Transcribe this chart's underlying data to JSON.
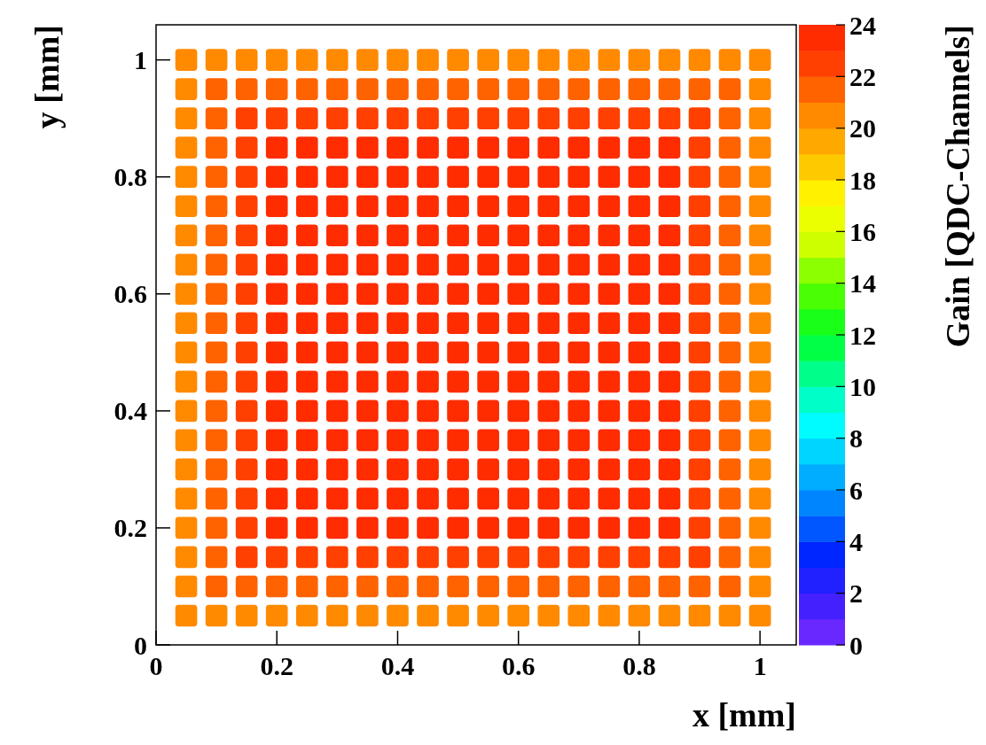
{
  "chart_data": {
    "type": "scatter",
    "marker": "square",
    "xlabel": "x [mm]",
    "ylabel": "y [mm]",
    "clabel": "Gain [QDC-Channels]",
    "xlim": [
      0,
      1.06
    ],
    "ylim": [
      0,
      1.06
    ],
    "xticks": [
      0,
      0.2,
      0.4,
      0.6,
      0.8,
      1
    ],
    "yticks": [
      0,
      0.2,
      0.4,
      0.6,
      0.8,
      1
    ],
    "clim": [
      0,
      24
    ],
    "cticks": [
      0,
      2,
      4,
      6,
      8,
      10,
      12,
      14,
      16,
      18,
      20,
      22,
      24
    ],
    "series": [
      {
        "color": "#ff8a00",
        "x": [
          0.05,
          0.1,
          0.15,
          0.2,
          0.25,
          0.3,
          0.35,
          0.4,
          0.45,
          0.5,
          0.55,
          0.6,
          0.65,
          0.7,
          0.75,
          0.8,
          0.85,
          0.9,
          0.95,
          1
        ],
        "values": [
          0.05,
          0.05,
          0.05,
          0.05,
          0.05,
          0.05,
          0.05,
          0.05,
          0.05,
          0.05,
          0.05,
          0.05,
          0.05,
          0.05,
          0.05,
          0.05,
          0.05,
          0.05,
          0.05,
          0.05
        ],
        "cvalues": [
          20.5,
          20.5,
          20.5,
          20.5,
          20.5,
          20.5,
          20.5,
          20.5,
          20.5,
          20.5,
          20.5,
          20.5,
          20.5,
          20.5,
          20.5,
          20.5,
          20.5,
          20.5,
          20.5,
          20.5
        ]
      },
      {
        "color": "#ff8a00",
        "x": [
          0.05,
          1
        ],
        "values": [
          0.1,
          0.1
        ],
        "cvalues": [
          20.5,
          20.5
        ]
      },
      {
        "color": "#ff6300",
        "x": [
          0.1,
          0.15,
          0.2,
          0.25,
          0.3,
          0.35,
          0.4,
          0.45,
          0.5,
          0.55,
          0.6,
          0.65,
          0.7,
          0.75,
          0.8,
          0.85,
          0.9,
          0.95
        ],
        "values": [
          0.1,
          0.1,
          0.1,
          0.1,
          0.1,
          0.1,
          0.1,
          0.1,
          0.1,
          0.1,
          0.1,
          0.1,
          0.1,
          0.1,
          0.1,
          0.1,
          0.1,
          0.1
        ],
        "cvalues": [
          21.5,
          21.5,
          21.5,
          21.5,
          21.5,
          21.5,
          21.5,
          21.5,
          21.5,
          21.5,
          21.5,
          21.5,
          21.5,
          21.5,
          21.5,
          21.5,
          21.5,
          21.5
        ]
      },
      {
        "color": "#ff8a00",
        "x": [
          0.05,
          1
        ],
        "values": [
          0.15,
          0.15
        ],
        "cvalues": [
          20.5,
          20.5
        ]
      },
      {
        "color": "#ff6300",
        "x": [
          0.1,
          0.95
        ],
        "values": [
          0.15,
          0.15
        ],
        "cvalues": [
          21.5,
          21.5
        ]
      },
      {
        "color": "#ff4000",
        "x": [
          0.15,
          0.2,
          0.25,
          0.3,
          0.35,
          0.4,
          0.45,
          0.5,
          0.55,
          0.6,
          0.65,
          0.7,
          0.75,
          0.8,
          0.85,
          0.9
        ],
        "values": [
          0.15,
          0.15,
          0.15,
          0.15,
          0.15,
          0.15,
          0.15,
          0.15,
          0.15,
          0.15,
          0.15,
          0.15,
          0.15,
          0.15,
          0.15,
          0.15
        ],
        "cvalues": [
          22.5,
          22.5,
          22.5,
          22.5,
          22.5,
          22.5,
          22.5,
          22.5,
          22.5,
          22.5,
          22.5,
          22.5,
          22.5,
          22.5,
          22.5,
          22.5
        ]
      },
      {
        "color": "#ff8a00",
        "x": [
          0.05,
          1
        ],
        "values": [
          0.2,
          0.2
        ],
        "cvalues": [
          20.5,
          20.5
        ]
      },
      {
        "color": "#ff6300",
        "x": [
          0.1,
          0.95
        ],
        "values": [
          0.2,
          0.2
        ],
        "cvalues": [
          21.5,
          21.5
        ]
      },
      {
        "color": "#ff4000",
        "x": [
          0.15,
          0.9
        ],
        "values": [
          0.2,
          0.2
        ],
        "cvalues": [
          22.5,
          22.5
        ]
      },
      {
        "color": "#ff2c00",
        "x": [
          0.2,
          0.25,
          0.3,
          0.35,
          0.4,
          0.45,
          0.5,
          0.55,
          0.6,
          0.65,
          0.7,
          0.75,
          0.8,
          0.85
        ],
        "values": [
          0.2,
          0.2,
          0.2,
          0.2,
          0.2,
          0.2,
          0.2,
          0.2,
          0.2,
          0.2,
          0.2,
          0.2,
          0.2,
          0.2
        ],
        "cvalues": [
          23.5,
          23.5,
          23.5,
          23.5,
          23.5,
          23.5,
          23.5,
          23.5,
          23.5,
          23.5,
          23.5,
          23.5,
          23.5,
          23.5
        ]
      },
      {
        "color": "#ff8a00",
        "x": [
          0.05,
          1
        ],
        "values": [
          0.25,
          0.25
        ],
        "cvalues": [
          20.5,
          20.5
        ]
      },
      {
        "color": "#ff6300",
        "x": [
          0.1,
          0.95
        ],
        "values": [
          0.25,
          0.25
        ],
        "cvalues": [
          21.5,
          21.5
        ]
      },
      {
        "color": "#ff4000",
        "x": [
          0.15,
          0.9
        ],
        "values": [
          0.25,
          0.25
        ],
        "cvalues": [
          22.5,
          22.5
        ]
      },
      {
        "color": "#ff2c00",
        "x": [
          0.2,
          0.25,
          0.3,
          0.35,
          0.4,
          0.45,
          0.5,
          0.55,
          0.6,
          0.65,
          0.7,
          0.75,
          0.8,
          0.85
        ],
        "values": [
          0.25,
          0.25,
          0.25,
          0.25,
          0.25,
          0.25,
          0.25,
          0.25,
          0.25,
          0.25,
          0.25,
          0.25,
          0.25,
          0.25
        ],
        "cvalues": [
          23.5,
          23.5,
          23.5,
          23.5,
          23.5,
          23.5,
          23.5,
          23.5,
          23.5,
          23.5,
          23.5,
          23.5,
          23.5,
          23.5
        ]
      },
      {
        "color": "#ff8a00",
        "x": [
          0.05,
          1
        ],
        "values": [
          0.3,
          0.3
        ],
        "cvalues": [
          20.5,
          20.5
        ]
      },
      {
        "color": "#ff6300",
        "x": [
          0.1,
          0.95
        ],
        "values": [
          0.3,
          0.3
        ],
        "cvalues": [
          21.5,
          21.5
        ]
      },
      {
        "color": "#ff4000",
        "x": [
          0.15,
          0.9
        ],
        "values": [
          0.3,
          0.3
        ],
        "cvalues": [
          22.5,
          22.5
        ]
      },
      {
        "color": "#ff2c00",
        "x": [
          0.2,
          0.25,
          0.3,
          0.35,
          0.4,
          0.45,
          0.5,
          0.55,
          0.6,
          0.65,
          0.7,
          0.75,
          0.8,
          0.85
        ],
        "values": [
          0.3,
          0.3,
          0.3,
          0.3,
          0.3,
          0.3,
          0.3,
          0.3,
          0.3,
          0.3,
          0.3,
          0.3,
          0.3,
          0.3
        ],
        "cvalues": [
          23.5,
          23.5,
          23.5,
          23.5,
          23.5,
          23.5,
          23.5,
          23.5,
          23.5,
          23.5,
          23.5,
          23.5,
          23.5,
          23.5
        ]
      },
      {
        "color": "#ff8a00",
        "x": [
          0.05,
          1
        ],
        "values": [
          0.35,
          0.35
        ],
        "cvalues": [
          20.5,
          20.5
        ]
      },
      {
        "color": "#ff6300",
        "x": [
          0.1,
          0.95
        ],
        "values": [
          0.35,
          0.35
        ],
        "cvalues": [
          21.5,
          21.5
        ]
      },
      {
        "color": "#ff4000",
        "x": [
          0.15,
          0.9
        ],
        "values": [
          0.35,
          0.35
        ],
        "cvalues": [
          22.5,
          22.5
        ]
      },
      {
        "color": "#ff2c00",
        "x": [
          0.2,
          0.25,
          0.3,
          0.35,
          0.4,
          0.45,
          0.5,
          0.55,
          0.6,
          0.65,
          0.7,
          0.75,
          0.8,
          0.85
        ],
        "values": [
          0.35,
          0.35,
          0.35,
          0.35,
          0.35,
          0.35,
          0.35,
          0.35,
          0.35,
          0.35,
          0.35,
          0.35,
          0.35,
          0.35
        ],
        "cvalues": [
          23.5,
          23.5,
          23.5,
          23.5,
          23.5,
          23.5,
          23.5,
          23.5,
          23.5,
          23.5,
          23.5,
          23.5,
          23.5,
          23.5
        ]
      },
      {
        "color": "#ff8a00",
        "x": [
          0.05,
          1
        ],
        "values": [
          0.4,
          0.4
        ],
        "cvalues": [
          20.5,
          20.5
        ]
      },
      {
        "color": "#ff6300",
        "x": [
          0.1,
          0.95
        ],
        "values": [
          0.4,
          0.4
        ],
        "cvalues": [
          21.5,
          21.5
        ]
      },
      {
        "color": "#ff4000",
        "x": [
          0.15,
          0.9
        ],
        "values": [
          0.4,
          0.4
        ],
        "cvalues": [
          22.5,
          22.5
        ]
      },
      {
        "color": "#ff2c00",
        "x": [
          0.2,
          0.25,
          0.3,
          0.35,
          0.4,
          0.45,
          0.5,
          0.55,
          0.6,
          0.65,
          0.7,
          0.75,
          0.8,
          0.85
        ],
        "values": [
          0.4,
          0.4,
          0.4,
          0.4,
          0.4,
          0.4,
          0.4,
          0.4,
          0.4,
          0.4,
          0.4,
          0.4,
          0.4,
          0.4
        ],
        "cvalues": [
          23.5,
          23.5,
          23.5,
          23.5,
          23.5,
          23.5,
          23.5,
          23.5,
          23.5,
          23.5,
          23.5,
          23.5,
          23.5,
          23.5
        ]
      },
      {
        "color": "#ff8a00",
        "x": [
          0.05,
          1
        ],
        "values": [
          0.45,
          0.45
        ],
        "cvalues": [
          20.5,
          20.5
        ]
      },
      {
        "color": "#ff6300",
        "x": [
          0.1,
          0.95
        ],
        "values": [
          0.45,
          0.45
        ],
        "cvalues": [
          21.5,
          21.5
        ]
      },
      {
        "color": "#ff4000",
        "x": [
          0.15,
          0.9
        ],
        "values": [
          0.45,
          0.45
        ],
        "cvalues": [
          22.5,
          22.5
        ]
      },
      {
        "color": "#ff2c00",
        "x": [
          0.2,
          0.25,
          0.3,
          0.35,
          0.4,
          0.45,
          0.5,
          0.55,
          0.6,
          0.65,
          0.7,
          0.75,
          0.8,
          0.85
        ],
        "values": [
          0.45,
          0.45,
          0.45,
          0.45,
          0.45,
          0.45,
          0.45,
          0.45,
          0.45,
          0.45,
          0.45,
          0.45,
          0.45,
          0.45
        ],
        "cvalues": [
          23.5,
          23.5,
          23.5,
          23.5,
          23.5,
          23.5,
          23.5,
          23.5,
          23.5,
          23.5,
          23.5,
          23.5,
          23.5,
          23.5
        ]
      },
      {
        "color": "#ff8a00",
        "x": [
          0.05,
          1
        ],
        "values": [
          0.5,
          0.5
        ],
        "cvalues": [
          20.5,
          20.5
        ]
      },
      {
        "color": "#ff6300",
        "x": [
          0.1,
          0.95
        ],
        "values": [
          0.5,
          0.5
        ],
        "cvalues": [
          21.5,
          21.5
        ]
      },
      {
        "color": "#ff4000",
        "x": [
          0.15,
          0.9
        ],
        "values": [
          0.5,
          0.5
        ],
        "cvalues": [
          22.5,
          22.5
        ]
      },
      {
        "color": "#ff2c00",
        "x": [
          0.2,
          0.25,
          0.3,
          0.35,
          0.4,
          0.45,
          0.5,
          0.55,
          0.6,
          0.65,
          0.7,
          0.75,
          0.8,
          0.85
        ],
        "values": [
          0.5,
          0.5,
          0.5,
          0.5,
          0.5,
          0.5,
          0.5,
          0.5,
          0.5,
          0.5,
          0.5,
          0.5,
          0.5,
          0.5
        ],
        "cvalues": [
          23.5,
          23.5,
          23.5,
          23.5,
          23.5,
          23.5,
          23.5,
          23.5,
          23.5,
          23.5,
          23.5,
          23.5,
          23.5,
          23.5
        ]
      },
      {
        "color": "#ff8a00",
        "x": [
          0.05,
          1
        ],
        "values": [
          0.55,
          0.55
        ],
        "cvalues": [
          20.5,
          20.5
        ]
      },
      {
        "color": "#ff6300",
        "x": [
          0.1,
          0.95
        ],
        "values": [
          0.55,
          0.55
        ],
        "cvalues": [
          21.5,
          21.5
        ]
      },
      {
        "color": "#ff4000",
        "x": [
          0.15,
          0.9
        ],
        "values": [
          0.55,
          0.55
        ],
        "cvalues": [
          22.5,
          22.5
        ]
      },
      {
        "color": "#ff2c00",
        "x": [
          0.2,
          0.25,
          0.3,
          0.35,
          0.4,
          0.45,
          0.5,
          0.55,
          0.6,
          0.65,
          0.7,
          0.75,
          0.8,
          0.85
        ],
        "values": [
          0.55,
          0.55,
          0.55,
          0.55,
          0.55,
          0.55,
          0.55,
          0.55,
          0.55,
          0.55,
          0.55,
          0.55,
          0.55,
          0.55
        ],
        "cvalues": [
          23.5,
          23.5,
          23.5,
          23.5,
          23.5,
          23.5,
          23.5,
          23.5,
          23.5,
          23.5,
          23.5,
          23.5,
          23.5,
          23.5
        ]
      },
      {
        "color": "#ff8a00",
        "x": [
          0.05,
          1
        ],
        "values": [
          0.6,
          0.6
        ],
        "cvalues": [
          20.5,
          20.5
        ]
      },
      {
        "color": "#ff6300",
        "x": [
          0.1,
          0.95
        ],
        "values": [
          0.6,
          0.6
        ],
        "cvalues": [
          21.5,
          21.5
        ]
      },
      {
        "color": "#ff4000",
        "x": [
          0.15,
          0.9
        ],
        "values": [
          0.6,
          0.6
        ],
        "cvalues": [
          22.5,
          22.5
        ]
      },
      {
        "color": "#ff2c00",
        "x": [
          0.2,
          0.25,
          0.3,
          0.35,
          0.4,
          0.45,
          0.5,
          0.55,
          0.6,
          0.65,
          0.7,
          0.75,
          0.8,
          0.85
        ],
        "values": [
          0.6,
          0.6,
          0.6,
          0.6,
          0.6,
          0.6,
          0.6,
          0.6,
          0.6,
          0.6,
          0.6,
          0.6,
          0.6,
          0.6
        ],
        "cvalues": [
          23.5,
          23.5,
          23.5,
          23.5,
          23.5,
          23.5,
          23.5,
          23.5,
          23.5,
          23.5,
          23.5,
          23.5,
          23.5,
          23.5
        ]
      },
      {
        "color": "#ff8a00",
        "x": [
          0.05,
          1
        ],
        "values": [
          0.65,
          0.65
        ],
        "cvalues": [
          20.5,
          20.5
        ]
      },
      {
        "color": "#ff6300",
        "x": [
          0.1,
          0.95
        ],
        "values": [
          0.65,
          0.65
        ],
        "cvalues": [
          21.5,
          21.5
        ]
      },
      {
        "color": "#ff4000",
        "x": [
          0.15,
          0.9
        ],
        "values": [
          0.65,
          0.65
        ],
        "cvalues": [
          22.5,
          22.5
        ]
      },
      {
        "color": "#ff2c00",
        "x": [
          0.2,
          0.25,
          0.3,
          0.35,
          0.4,
          0.45,
          0.5,
          0.55,
          0.6,
          0.65,
          0.7,
          0.75,
          0.8,
          0.85
        ],
        "values": [
          0.65,
          0.65,
          0.65,
          0.65,
          0.65,
          0.65,
          0.65,
          0.65,
          0.65,
          0.65,
          0.65,
          0.65,
          0.65,
          0.65
        ],
        "cvalues": [
          23.5,
          23.5,
          23.5,
          23.5,
          23.5,
          23.5,
          23.5,
          23.5,
          23.5,
          23.5,
          23.5,
          23.5,
          23.5,
          23.5
        ]
      },
      {
        "color": "#ff8a00",
        "x": [
          0.05,
          1
        ],
        "values": [
          0.7,
          0.7
        ],
        "cvalues": [
          20.5,
          20.5
        ]
      },
      {
        "color": "#ff6300",
        "x": [
          0.1,
          0.95
        ],
        "values": [
          0.7,
          0.7
        ],
        "cvalues": [
          21.5,
          21.5
        ]
      },
      {
        "color": "#ff4000",
        "x": [
          0.15,
          0.9
        ],
        "values": [
          0.7,
          0.7
        ],
        "cvalues": [
          22.5,
          22.5
        ]
      },
      {
        "color": "#ff2c00",
        "x": [
          0.2,
          0.25,
          0.3,
          0.35,
          0.4,
          0.45,
          0.5,
          0.55,
          0.6,
          0.65,
          0.7,
          0.75,
          0.8,
          0.85
        ],
        "values": [
          0.7,
          0.7,
          0.7,
          0.7,
          0.7,
          0.7,
          0.7,
          0.7,
          0.7,
          0.7,
          0.7,
          0.7,
          0.7,
          0.7
        ],
        "cvalues": [
          23.5,
          23.5,
          23.5,
          23.5,
          23.5,
          23.5,
          23.5,
          23.5,
          23.5,
          23.5,
          23.5,
          23.5,
          23.5,
          23.5
        ]
      },
      {
        "color": "#ff8a00",
        "x": [
          0.05,
          1
        ],
        "values": [
          0.75,
          0.75
        ],
        "cvalues": [
          20.5,
          20.5
        ]
      },
      {
        "color": "#ff6300",
        "x": [
          0.1,
          0.95
        ],
        "values": [
          0.75,
          0.75
        ],
        "cvalues": [
          21.5,
          21.5
        ]
      },
      {
        "color": "#ff4000",
        "x": [
          0.15,
          0.9
        ],
        "values": [
          0.75,
          0.75
        ],
        "cvalues": [
          22.5,
          22.5
        ]
      },
      {
        "color": "#ff2c00",
        "x": [
          0.2,
          0.25,
          0.3,
          0.35,
          0.4,
          0.45,
          0.5,
          0.55,
          0.6,
          0.65,
          0.7,
          0.75,
          0.8,
          0.85
        ],
        "values": [
          0.75,
          0.75,
          0.75,
          0.75,
          0.75,
          0.75,
          0.75,
          0.75,
          0.75,
          0.75,
          0.75,
          0.75,
          0.75,
          0.75
        ],
        "cvalues": [
          23.5,
          23.5,
          23.5,
          23.5,
          23.5,
          23.5,
          23.5,
          23.5,
          23.5,
          23.5,
          23.5,
          23.5,
          23.5,
          23.5
        ]
      },
      {
        "color": "#ff8a00",
        "x": [
          0.05,
          1
        ],
        "values": [
          0.8,
          0.8
        ],
        "cvalues": [
          20.5,
          20.5
        ]
      },
      {
        "color": "#ff6300",
        "x": [
          0.1,
          0.95
        ],
        "values": [
          0.8,
          0.8
        ],
        "cvalues": [
          21.5,
          21.5
        ]
      },
      {
        "color": "#ff4000",
        "x": [
          0.15,
          0.9
        ],
        "values": [
          0.8,
          0.8
        ],
        "cvalues": [
          22.5,
          22.5
        ]
      },
      {
        "color": "#ff2c00",
        "x": [
          0.2,
          0.25,
          0.3,
          0.35,
          0.4,
          0.45,
          0.5,
          0.55,
          0.6,
          0.65,
          0.7,
          0.75,
          0.8,
          0.85
        ],
        "values": [
          0.8,
          0.8,
          0.8,
          0.8,
          0.8,
          0.8,
          0.8,
          0.8,
          0.8,
          0.8,
          0.8,
          0.8,
          0.8,
          0.8
        ],
        "cvalues": [
          23.5,
          23.5,
          23.5,
          23.5,
          23.5,
          23.5,
          23.5,
          23.5,
          23.5,
          23.5,
          23.5,
          23.5,
          23.5,
          23.5
        ]
      },
      {
        "color": "#ff8a00",
        "x": [
          0.05,
          1
        ],
        "values": [
          0.85,
          0.85
        ],
        "cvalues": [
          20.5,
          20.5
        ]
      },
      {
        "color": "#ff6300",
        "x": [
          0.1,
          0.95
        ],
        "values": [
          0.85,
          0.85
        ],
        "cvalues": [
          21.5,
          21.5
        ]
      },
      {
        "color": "#ff4000",
        "x": [
          0.15,
          0.9
        ],
        "values": [
          0.85,
          0.85
        ],
        "cvalues": [
          22.5,
          22.5
        ]
      },
      {
        "color": "#ff2c00",
        "x": [
          0.2,
          0.25,
          0.3,
          0.35,
          0.4,
          0.45,
          0.5,
          0.55,
          0.6,
          0.65,
          0.7,
          0.75,
          0.8,
          0.85
        ],
        "values": [
          0.85,
          0.85,
          0.85,
          0.85,
          0.85,
          0.85,
          0.85,
          0.85,
          0.85,
          0.85,
          0.85,
          0.85,
          0.85,
          0.85
        ],
        "cvalues": [
          23.5,
          23.5,
          23.5,
          23.5,
          23.5,
          23.5,
          23.5,
          23.5,
          23.5,
          23.5,
          23.5,
          23.5,
          23.5,
          23.5
        ]
      },
      {
        "color": "#ff8a00",
        "x": [
          0.05,
          1
        ],
        "values": [
          0.9,
          0.9
        ],
        "cvalues": [
          20.5,
          20.5
        ]
      },
      {
        "color": "#ff6300",
        "x": [
          0.1,
          0.95
        ],
        "values": [
          0.9,
          0.9
        ],
        "cvalues": [
          21.5,
          21.5
        ]
      },
      {
        "color": "#ff4000",
        "x": [
          0.15,
          0.2,
          0.25,
          0.3,
          0.35,
          0.4,
          0.45,
          0.5,
          0.55,
          0.6,
          0.65,
          0.7,
          0.75,
          0.8,
          0.85,
          0.9
        ],
        "values": [
          0.9,
          0.9,
          0.9,
          0.9,
          0.9,
          0.9,
          0.9,
          0.9,
          0.9,
          0.9,
          0.9,
          0.9,
          0.9,
          0.9,
          0.9,
          0.9
        ],
        "cvalues": [
          22.5,
          22.5,
          22.5,
          22.5,
          22.5,
          22.5,
          22.5,
          22.5,
          22.5,
          22.5,
          22.5,
          22.5,
          22.5,
          22.5,
          22.5,
          22.5
        ]
      },
      {
        "color": "#ff8a00",
        "x": [
          0.05,
          1
        ],
        "values": [
          0.95,
          0.95
        ],
        "cvalues": [
          20.5,
          20.5
        ]
      },
      {
        "color": "#ff6300",
        "x": [
          0.1,
          0.15,
          0.2,
          0.25,
          0.3,
          0.35,
          0.4,
          0.45,
          0.5,
          0.55,
          0.6,
          0.65,
          0.7,
          0.75,
          0.8,
          0.85,
          0.9,
          0.95
        ],
        "values": [
          0.95,
          0.95,
          0.95,
          0.95,
          0.95,
          0.95,
          0.95,
          0.95,
          0.95,
          0.95,
          0.95,
          0.95,
          0.95,
          0.95,
          0.95,
          0.95,
          0.95,
          0.95
        ],
        "cvalues": [
          21.5,
          21.5,
          21.5,
          21.5,
          21.5,
          21.5,
          21.5,
          21.5,
          21.5,
          21.5,
          21.5,
          21.5,
          21.5,
          21.5,
          21.5,
          21.5,
          21.5,
          21.5
        ]
      },
      {
        "color": "#ff8a00",
        "x": [
          0.05,
          0.1,
          0.15,
          0.2,
          0.25,
          0.3,
          0.35,
          0.4,
          0.45,
          0.5,
          0.55,
          0.6,
          0.65,
          0.7,
          0.75,
          0.8,
          0.85,
          0.9,
          0.95,
          1
        ],
        "values": [
          1,
          1,
          1,
          1,
          1,
          1,
          1,
          1,
          1,
          1,
          1,
          1,
          1,
          1,
          1,
          1,
          1,
          1,
          1,
          1
        ],
        "cvalues": [
          20.5,
          20.5,
          20.5,
          20.5,
          20.5,
          20.5,
          20.5,
          20.5,
          20.5,
          20.5,
          20.5,
          20.5,
          20.5,
          20.5,
          20.5,
          20.5,
          20.5,
          20.5,
          20.5,
          20.5
        ]
      }
    ]
  }
}
